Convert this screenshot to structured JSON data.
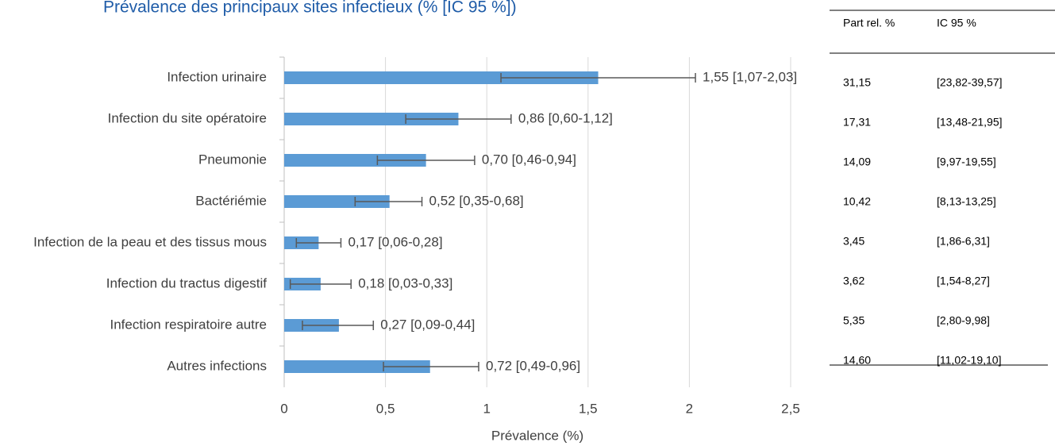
{
  "chart_data": {
    "type": "hbar_errorbar",
    "title": "Prévalence des principaux sites infectieux (% [IC 95 %])",
    "xlabel": "Prévalence (%)",
    "categories": [
      "Infection urinaire",
      "Infection du site opératoire",
      "Pneumonie",
      "Bactériémie",
      "Infection de la peau et des tissus mous",
      "Infection du tractus digestif",
      "Infection respiratoire autre",
      "Autres infections"
    ],
    "values": [
      1.55,
      0.86,
      0.7,
      0.52,
      0.17,
      0.18,
      0.27,
      0.72
    ],
    "ci_low": [
      1.07,
      0.6,
      0.46,
      0.35,
      0.06,
      0.03,
      0.09,
      0.49
    ],
    "ci_high": [
      2.03,
      1.12,
      0.94,
      0.68,
      0.28,
      0.33,
      0.44,
      0.96
    ],
    "value_labels": [
      "1,55 [1,07-2,03]",
      "0,86 [0,60-1,12]",
      "0,70 [0,46-0,94]",
      "0,52 [0,35-0,68]",
      "0,17 [0,06-0,28]",
      "0,18 [0,03-0,33]",
      "0,27 [0,09-0,44]",
      "0,72 [0,49-0,96]"
    ],
    "color": "#5b9bd5",
    "xlim": [
      0,
      2.5
    ],
    "xticks": [
      0,
      {
        "value": 0.5,
        "label": "0,5"
      },
      1,
      {
        "value": 1.5,
        "label": "1,5"
      },
      2,
      {
        "value": 2.5,
        "label": "2,5"
      }
    ],
    "grid": true
  },
  "table": {
    "columns": [
      "Part rel. %",
      "IC 95 %"
    ],
    "rows": [
      [
        "31,15",
        "[23,82-39,57]"
      ],
      [
        "17,31",
        "[13,48-21,95]"
      ],
      [
        "14,09",
        "[9,97-19,55]"
      ],
      [
        "10,42",
        "[8,13-13,25]"
      ],
      [
        "3,45",
        "[1,86-6,31]"
      ],
      [
        "3,62",
        "[1,54-8,27]"
      ],
      [
        "5,35",
        "[2,80-9,98]"
      ],
      [
        "14,60",
        "[11,02-19,10]"
      ]
    ]
  }
}
